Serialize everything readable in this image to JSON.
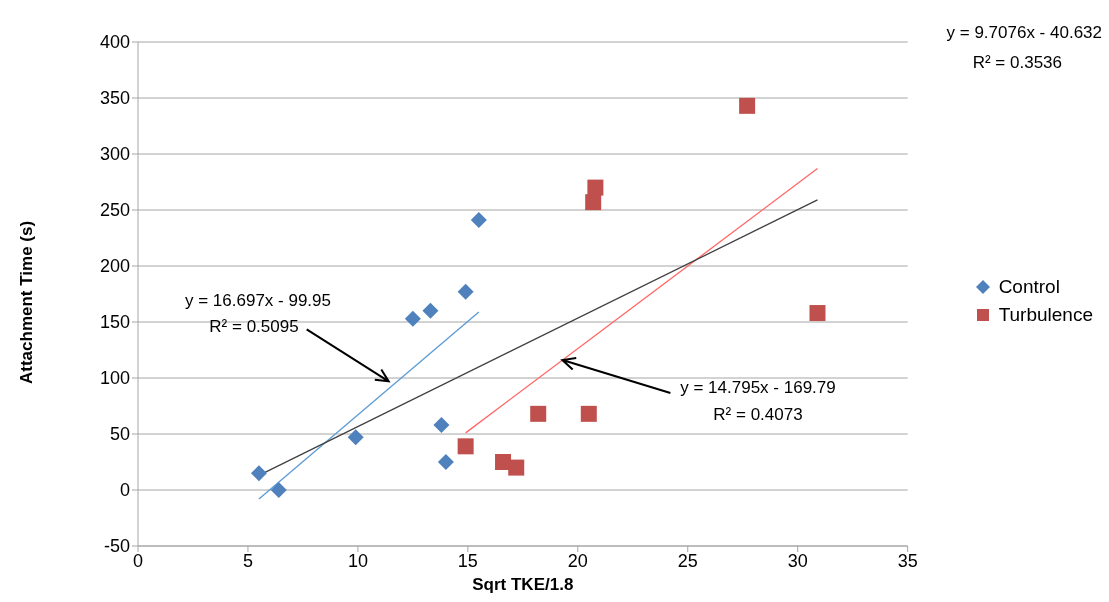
{
  "chart_data": {
    "type": "scatter",
    "xlabel": "Sqrt TKE/1.8",
    "ylabel": "Attachment Time (s)",
    "xlim": [
      0,
      35
    ],
    "xticks": [
      0,
      5,
      10,
      15,
      20,
      25,
      30,
      35
    ],
    "ylim": [
      -50,
      400
    ],
    "yticks": [
      -50,
      0,
      50,
      100,
      150,
      200,
      250,
      300,
      350,
      400
    ],
    "grid": "y",
    "legend": "right",
    "series": [
      {
        "name": "Control",
        "marker": "diamond",
        "color": "#4f81bd",
        "x": [
          5.5,
          6.4,
          9.9,
          12.5,
          13.3,
          14.9,
          15.5,
          13.8,
          14.0
        ],
        "values": [
          15,
          0,
          47,
          153,
          160,
          177,
          241,
          58,
          25
        ]
      },
      {
        "name": "Turbulence",
        "marker": "square",
        "color": "#c0504d",
        "x": [
          14.9,
          16.6,
          17.2,
          18.2,
          20.5,
          20.7,
          20.8,
          27.7,
          30.9
        ],
        "values": [
          39,
          25,
          20,
          68,
          68,
          257,
          270,
          343,
          158
        ]
      },
      {
        "type": "line",
        "marker": "none",
        "color": "#5b9bd5",
        "x": [
          5.5,
          15.5
        ],
        "values": [
          -8,
          159
        ]
      },
      {
        "type": "line",
        "marker": "none",
        "color": "#ff6666",
        "x": [
          14.9,
          30.9
        ],
        "values": [
          51,
          287
        ]
      },
      {
        "type": "line",
        "marker": "none",
        "color": "#404040",
        "x": [
          5.5,
          30.9
        ],
        "values": [
          13,
          259
        ]
      }
    ],
    "annotations": [
      "y = 9.7076x - 40.632",
      "R² = 0.3536",
      "y = 16.697x - 99.95",
      {
        "text": "R² = 0.5095",
        "x": 11.4,
        "y": 97
      },
      {
        "text": "y = 14.795x - 169.79",
        "x": 19.3,
        "y": 116
      },
      "R² = 0.4073"
    ]
  }
}
